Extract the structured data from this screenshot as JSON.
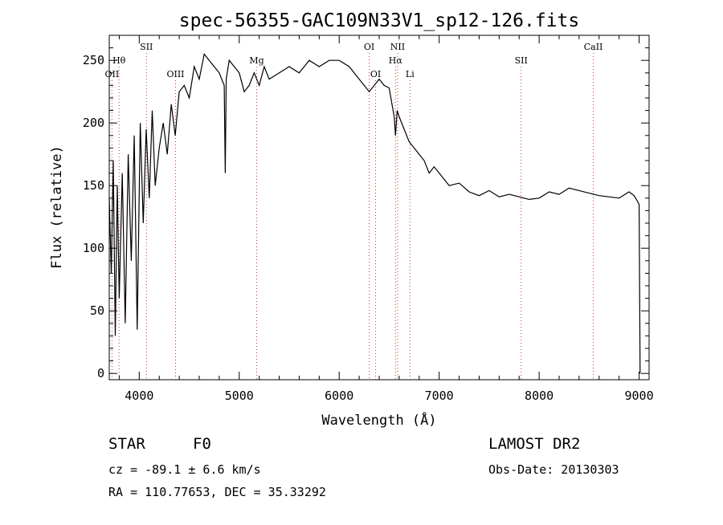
{
  "chart_data": {
    "type": "line",
    "title": "spec-56355-GAC109N33V1_sp12-126.fits",
    "xlabel": "Wavelength (Å)",
    "ylabel": "Flux (relative)",
    "xlim": [
      3700,
      9100
    ],
    "ylim": [
      -5,
      270
    ],
    "x_ticks": [
      4000,
      5000,
      6000,
      7000,
      8000,
      9000
    ],
    "y_ticks": [
      0,
      50,
      100,
      150,
      200,
      250
    ],
    "grid": false,
    "series": [
      {
        "color": "#000000",
        "x": [
          3700,
          3720,
          3740,
          3760,
          3780,
          3800,
          3830,
          3860,
          3890,
          3920,
          3950,
          3980,
          4010,
          4040,
          4070,
          4100,
          4130,
          4160,
          4200,
          4240,
          4280,
          4320,
          4360,
          4400,
          4450,
          4500,
          4550,
          4600,
          4650,
          4700,
          4750,
          4800,
          4850,
          4860,
          4870,
          4900,
          4950,
          5000,
          5050,
          5100,
          5150,
          5200,
          5250,
          5300,
          5400,
          5500,
          5600,
          5700,
          5800,
          5900,
          6000,
          6100,
          6200,
          6300,
          6400,
          6450,
          6500,
          6550,
          6563,
          6580,
          6600,
          6650,
          6700,
          6750,
          6800,
          6850,
          6900,
          6950,
          7000,
          7050,
          7100,
          7200,
          7300,
          7400,
          7500,
          7600,
          7700,
          7800,
          7900,
          8000,
          8100,
          8200,
          8300,
          8400,
          8500,
          8600,
          8700,
          8800,
          8900,
          8950,
          8980,
          9000,
          9010
        ],
        "y": [
          140,
          80,
          170,
          30,
          150,
          60,
          160,
          40,
          175,
          90,
          190,
          35,
          200,
          120,
          195,
          140,
          210,
          150,
          180,
          200,
          175,
          215,
          190,
          225,
          230,
          220,
          245,
          235,
          255,
          250,
          245,
          240,
          230,
          160,
          235,
          250,
          245,
          240,
          225,
          230,
          240,
          230,
          245,
          235,
          240,
          245,
          240,
          250,
          245,
          250,
          250,
          245,
          235,
          225,
          235,
          230,
          228,
          205,
          190,
          210,
          205,
          195,
          185,
          180,
          175,
          170,
          160,
          165,
          160,
          155,
          150,
          152,
          145,
          142,
          146,
          141,
          143,
          141,
          139,
          140,
          145,
          143,
          148,
          146,
          144,
          142,
          141,
          140,
          145,
          142,
          138,
          135,
          0
        ]
      }
    ],
    "line_labels": [
      {
        "label": "Hθ",
        "x": 3798,
        "row": 2
      },
      {
        "label": "OII",
        "x": 3727,
        "row": 3
      },
      {
        "label": "SII",
        "x": 4072,
        "row": 1
      },
      {
        "label": "OIII",
        "x": 4363,
        "row": 3
      },
      {
        "label": "Mg",
        "x": 5175,
        "row": 2
      },
      {
        "label": "OI",
        "x": 6300,
        "row": 1
      },
      {
        "label": "OI",
        "x": 6364,
        "row": 3
      },
      {
        "label": "NII",
        "x": 6584,
        "row": 1
      },
      {
        "label": "Hα",
        "x": 6563,
        "row": 2
      },
      {
        "label": "Li",
        "x": 6708,
        "row": 3
      },
      {
        "label": "SII",
        "x": 7820,
        "row": 2
      },
      {
        "label": "CaII",
        "x": 8542,
        "row": 1
      }
    ]
  },
  "info": {
    "object_class": "STAR",
    "subclass": "F0",
    "survey": "LAMOST DR2",
    "cz": "cz = -89.1 ± 6.6 km/s",
    "obs_date": "Obs-Date: 20130303",
    "coords": "RA = 110.77653, DEC =  35.33292"
  }
}
